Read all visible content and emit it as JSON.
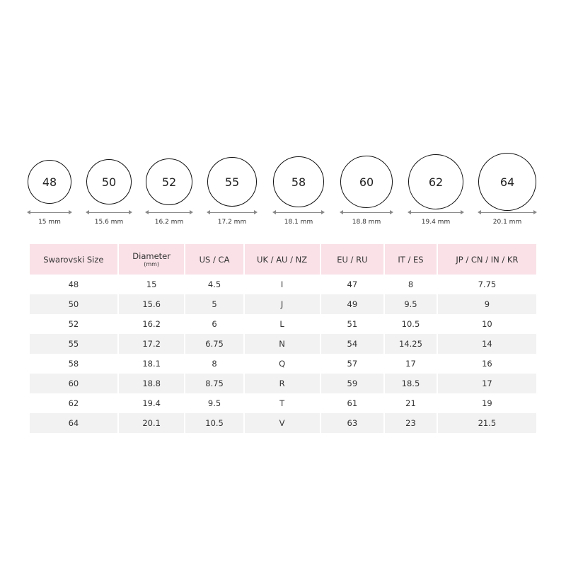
{
  "rings": [
    {
      "size": "48",
      "diameter": "15 mm"
    },
    {
      "size": "50",
      "diameter": "15.6 mm"
    },
    {
      "size": "52",
      "diameter": "16.2 mm"
    },
    {
      "size": "55",
      "diameter": "17.2 mm"
    },
    {
      "size": "58",
      "diameter": "18.1 mm"
    },
    {
      "size": "60",
      "diameter": "18.8 mm"
    },
    {
      "size": "62",
      "diameter": "19.4 mm"
    },
    {
      "size": "64",
      "diameter": "20.1 mm"
    }
  ],
  "table": {
    "headers": [
      "Swarovski Size",
      "Diameter",
      "US / CA",
      "UK / AU / NZ",
      "EU / RU",
      "IT / ES",
      "JP / CN / IN / KR"
    ],
    "diameter_unit": "(mm)",
    "rows": [
      [
        "48",
        "15",
        "4.5",
        "I",
        "47",
        "8",
        "7.75"
      ],
      [
        "50",
        "15.6",
        "5",
        "J",
        "49",
        "9.5",
        "9"
      ],
      [
        "52",
        "16.2",
        "6",
        "L",
        "51",
        "10.5",
        "10"
      ],
      [
        "55",
        "17.2",
        "6.75",
        "N",
        "54",
        "14.25",
        "14"
      ],
      [
        "58",
        "18.1",
        "8",
        "Q",
        "57",
        "17",
        "16"
      ],
      [
        "60",
        "18.8",
        "8.75",
        "R",
        "59",
        "18.5",
        "17"
      ],
      [
        "62",
        "19.4",
        "9.5",
        "T",
        "61",
        "21",
        "19"
      ],
      [
        "64",
        "20.1",
        "10.5",
        "V",
        "63",
        "23",
        "21.5"
      ]
    ]
  },
  "colors": {
    "header_bg": "#f9e1e7",
    "alt_row_bg": "#f2f2f2"
  }
}
